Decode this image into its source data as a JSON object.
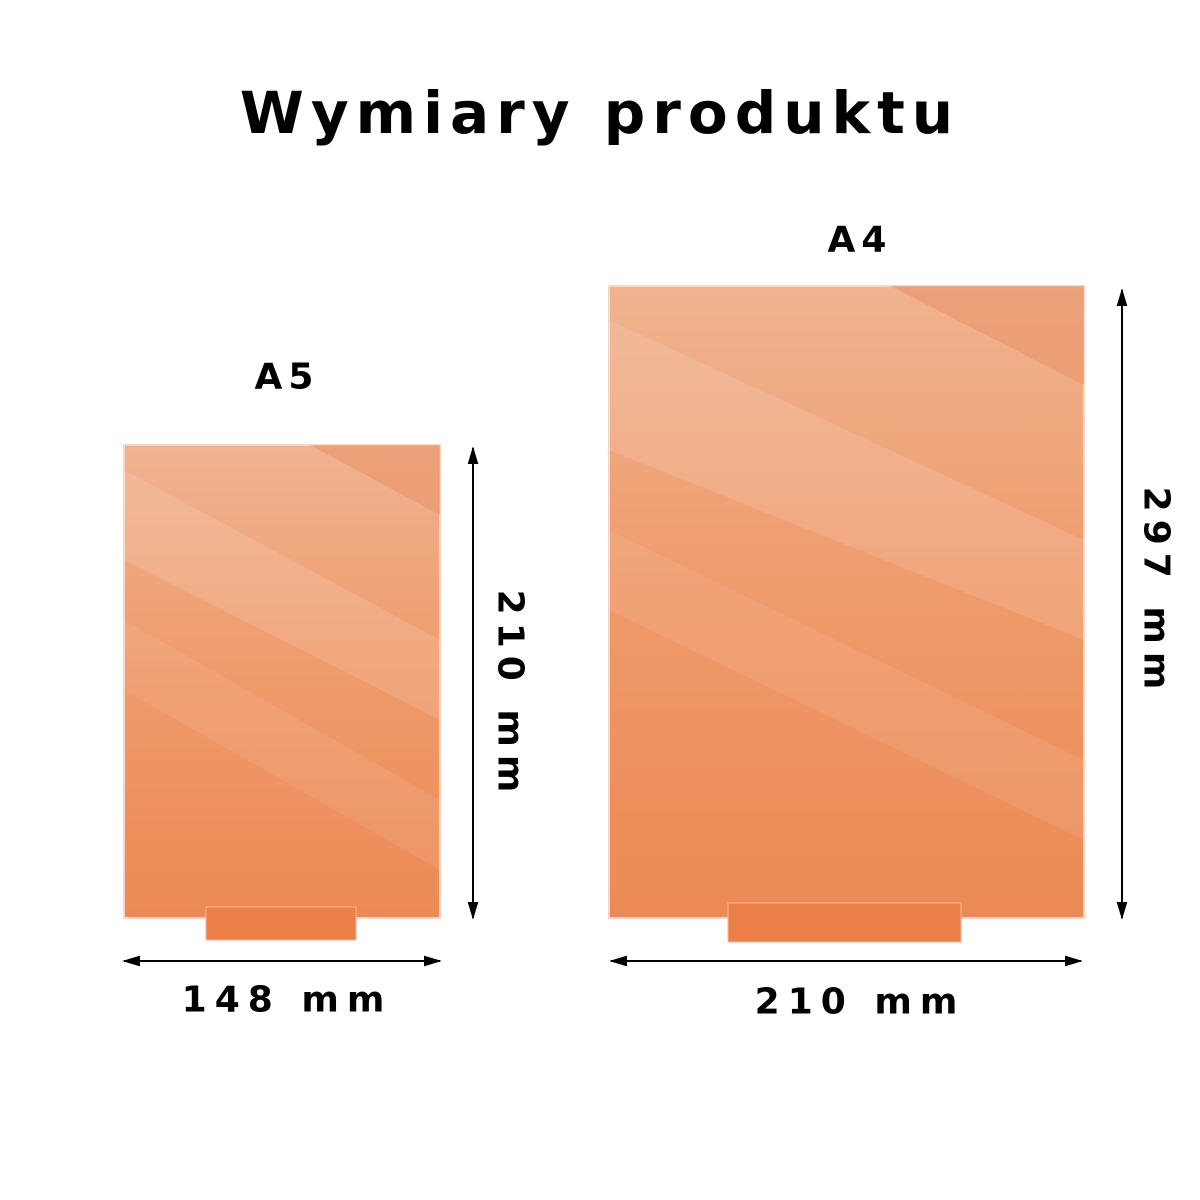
{
  "title": "Wymiary produktu",
  "colors": {
    "board_light": "#f0b38f",
    "board_dark": "#ec8650",
    "stand": "#ec7f47",
    "arrow": "#000000"
  },
  "boards": [
    {
      "name": "A5",
      "width_label": "148 mm",
      "height_label": "210 mm"
    },
    {
      "name": "A4",
      "width_label": "210 mm",
      "height_label": "297 mm"
    }
  ]
}
